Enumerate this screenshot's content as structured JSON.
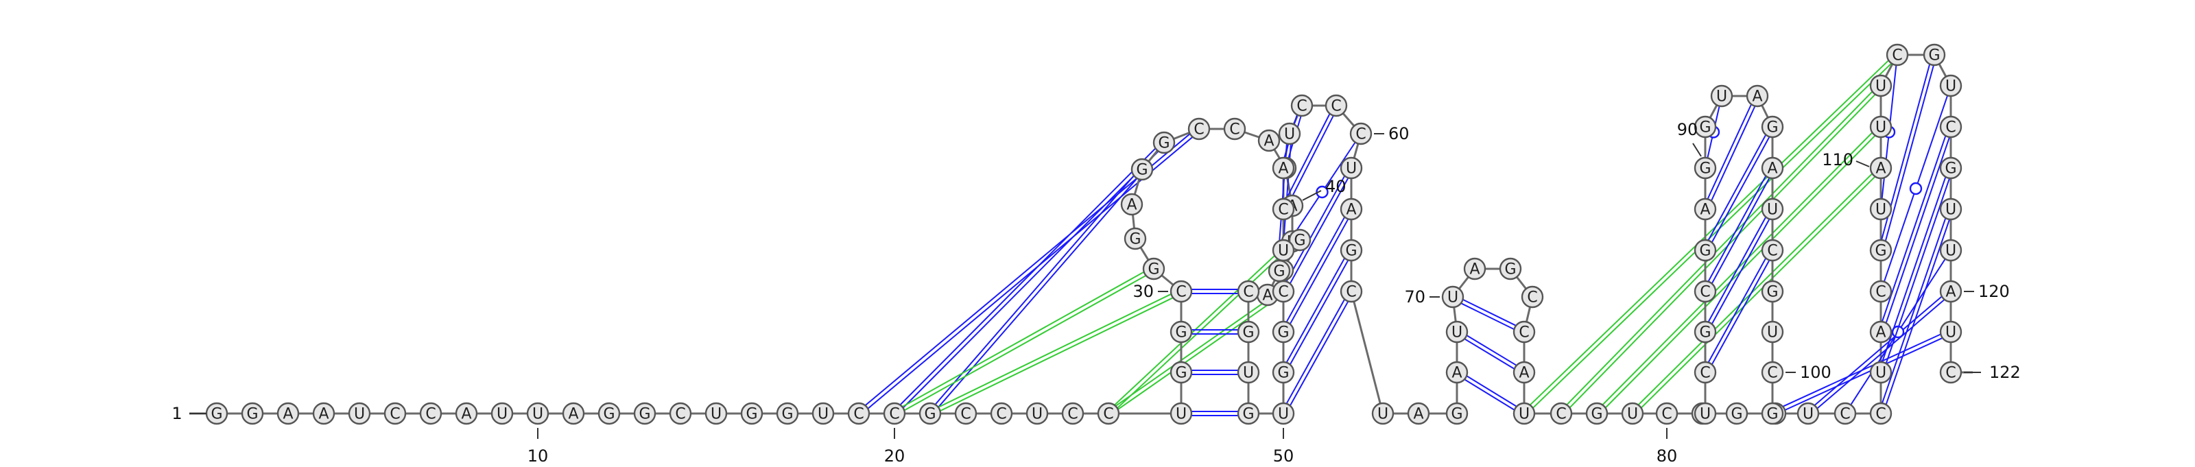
{
  "diagram": {
    "sequence": [
      "G",
      "G",
      "A",
      "A",
      "U",
      "C",
      "C",
      "A",
      "U",
      "U",
      "A",
      "G",
      "G",
      "C",
      "U",
      "G",
      "G",
      "U",
      "C",
      "C",
      "G",
      "C",
      "C",
      "U",
      "C",
      "C",
      "U",
      "G",
      "G",
      "C",
      "G",
      "G",
      "A",
      "G",
      "G",
      "C",
      "C",
      "A",
      "G",
      "A",
      "U",
      "G",
      "G",
      "G",
      "A",
      "C",
      "G",
      "U",
      "G",
      "U",
      "G",
      "G",
      "C",
      "U",
      "C",
      "A",
      "U",
      "C",
      "C",
      "C",
      "U",
      "A",
      "G",
      "C",
      "U",
      "A",
      "G",
      "A",
      "U",
      "U",
      "A",
      "G",
      "C",
      "C",
      "A",
      "U",
      "C",
      "G",
      "U",
      "C",
      "U",
      "G",
      "U",
      "U",
      "C",
      "G",
      "C",
      "G",
      "A",
      "G",
      "G",
      "U",
      "A",
      "G",
      "A",
      "U",
      "C",
      "G",
      "U",
      "C",
      "G",
      "U",
      "C",
      "C",
      "U",
      "A",
      "C",
      "G",
      "U",
      "A",
      "U",
      "U",
      "C",
      "G",
      "U",
      "C",
      "G",
      "U",
      "U",
      "A",
      "U",
      "C"
    ],
    "numbering": [
      {
        "label": "1",
        "index": 1
      },
      {
        "label": "10",
        "index": 10
      },
      {
        "label": "20",
        "index": 20
      },
      {
        "label": "30",
        "index": 30
      },
      {
        "label": "40",
        "index": 40
      },
      {
        "label": "50",
        "index": 50
      },
      {
        "label": "60",
        "index": 60
      },
      {
        "label": "70",
        "index": 70
      },
      {
        "label": "80",
        "index": 80
      },
      {
        "label": "90",
        "index": 90
      },
      {
        "label": "100",
        "index": 100
      },
      {
        "label": "110",
        "index": 110
      },
      {
        "label": "120",
        "index": 120
      },
      {
        "label": "122",
        "index": 122
      }
    ],
    "pairs": [
      {
        "i": 27,
        "j": 49,
        "type": "canonical"
      },
      {
        "i": 28,
        "j": 48,
        "type": "canonical"
      },
      {
        "i": 29,
        "j": 47,
        "type": "canonical"
      },
      {
        "i": 30,
        "j": 46,
        "type": "canonical"
      },
      {
        "i": 50,
        "j": 64,
        "type": "canonical"
      },
      {
        "i": 51,
        "j": 63,
        "type": "canonical"
      },
      {
        "i": 52,
        "j": 62,
        "type": "canonical"
      },
      {
        "i": 53,
        "j": 61,
        "type": "canonical"
      },
      {
        "i": 54,
        "j": 60,
        "type": "wobble"
      },
      {
        "i": 55,
        "j": 59,
        "type": "canonical"
      },
      {
        "i": 56,
        "j": 58,
        "type": "canonical"
      },
      {
        "i": 57,
        "j": 44,
        "type": "canonical"
      },
      {
        "i": 68,
        "j": 76,
        "type": "canonical"
      },
      {
        "i": 69,
        "j": 75,
        "type": "canonical"
      },
      {
        "i": 70,
        "j": 74,
        "type": "canonical"
      },
      {
        "i": 85,
        "j": 97,
        "type": "canonical"
      },
      {
        "i": 86,
        "j": 96,
        "type": "canonical"
      },
      {
        "i": 87,
        "j": 95,
        "type": "canonical"
      },
      {
        "i": 88,
        "j": 94,
        "type": "canonical"
      },
      {
        "i": 89,
        "j": 93,
        "type": "canonical"
      },
      {
        "i": 90,
        "j": 92,
        "type": "wobble"
      },
      {
        "i": 101,
        "j": 121,
        "type": "canonical"
      },
      {
        "i": 102,
        "j": 120,
        "type": "canonical"
      },
      {
        "i": 103,
        "j": 119,
        "type": "wobble"
      },
      {
        "i": 104,
        "j": 118,
        "type": "canonical"
      },
      {
        "i": 105,
        "j": 117,
        "type": "canonical"
      },
      {
        "i": 106,
        "j": 116,
        "type": "canonical"
      },
      {
        "i": 107,
        "j": 115,
        "type": "wobble"
      },
      {
        "i": 108,
        "j": 114,
        "type": "canonical"
      },
      {
        "i": 109,
        "j": 113,
        "type": "wobble"
      },
      {
        "i": 19,
        "j": 36,
        "type": "tertiary"
      },
      {
        "i": 20,
        "j": 35,
        "type": "tertiary"
      },
      {
        "i": 21,
        "j": 34,
        "type": "tertiary"
      },
      {
        "i": 20,
        "j": 31,
        "type": "pseudoknot"
      },
      {
        "i": 21,
        "j": 30,
        "type": "pseudoknot"
      },
      {
        "i": 26,
        "j": 54,
        "type": "pseudoknot"
      },
      {
        "i": 26,
        "j": 53,
        "type": "pseudoknot"
      },
      {
        "i": 76,
        "j": 113,
        "type": "pseudoknot"
      },
      {
        "i": 77,
        "j": 112,
        "type": "pseudoknot"
      },
      {
        "i": 78,
        "j": 111,
        "type": "pseudoknot"
      },
      {
        "i": 79,
        "j": 110,
        "type": "pseudoknot"
      }
    ],
    "colors": {
      "canonical": "#1a1aff",
      "wobble": "#1a1aff",
      "tertiary": "#1a1aff",
      "pseudoknot": "#33cc33",
      "backbone": "#6b6b6b",
      "nucleotide_fill": "#e6e6e6",
      "nucleotide_stroke": "#555555"
    }
  }
}
